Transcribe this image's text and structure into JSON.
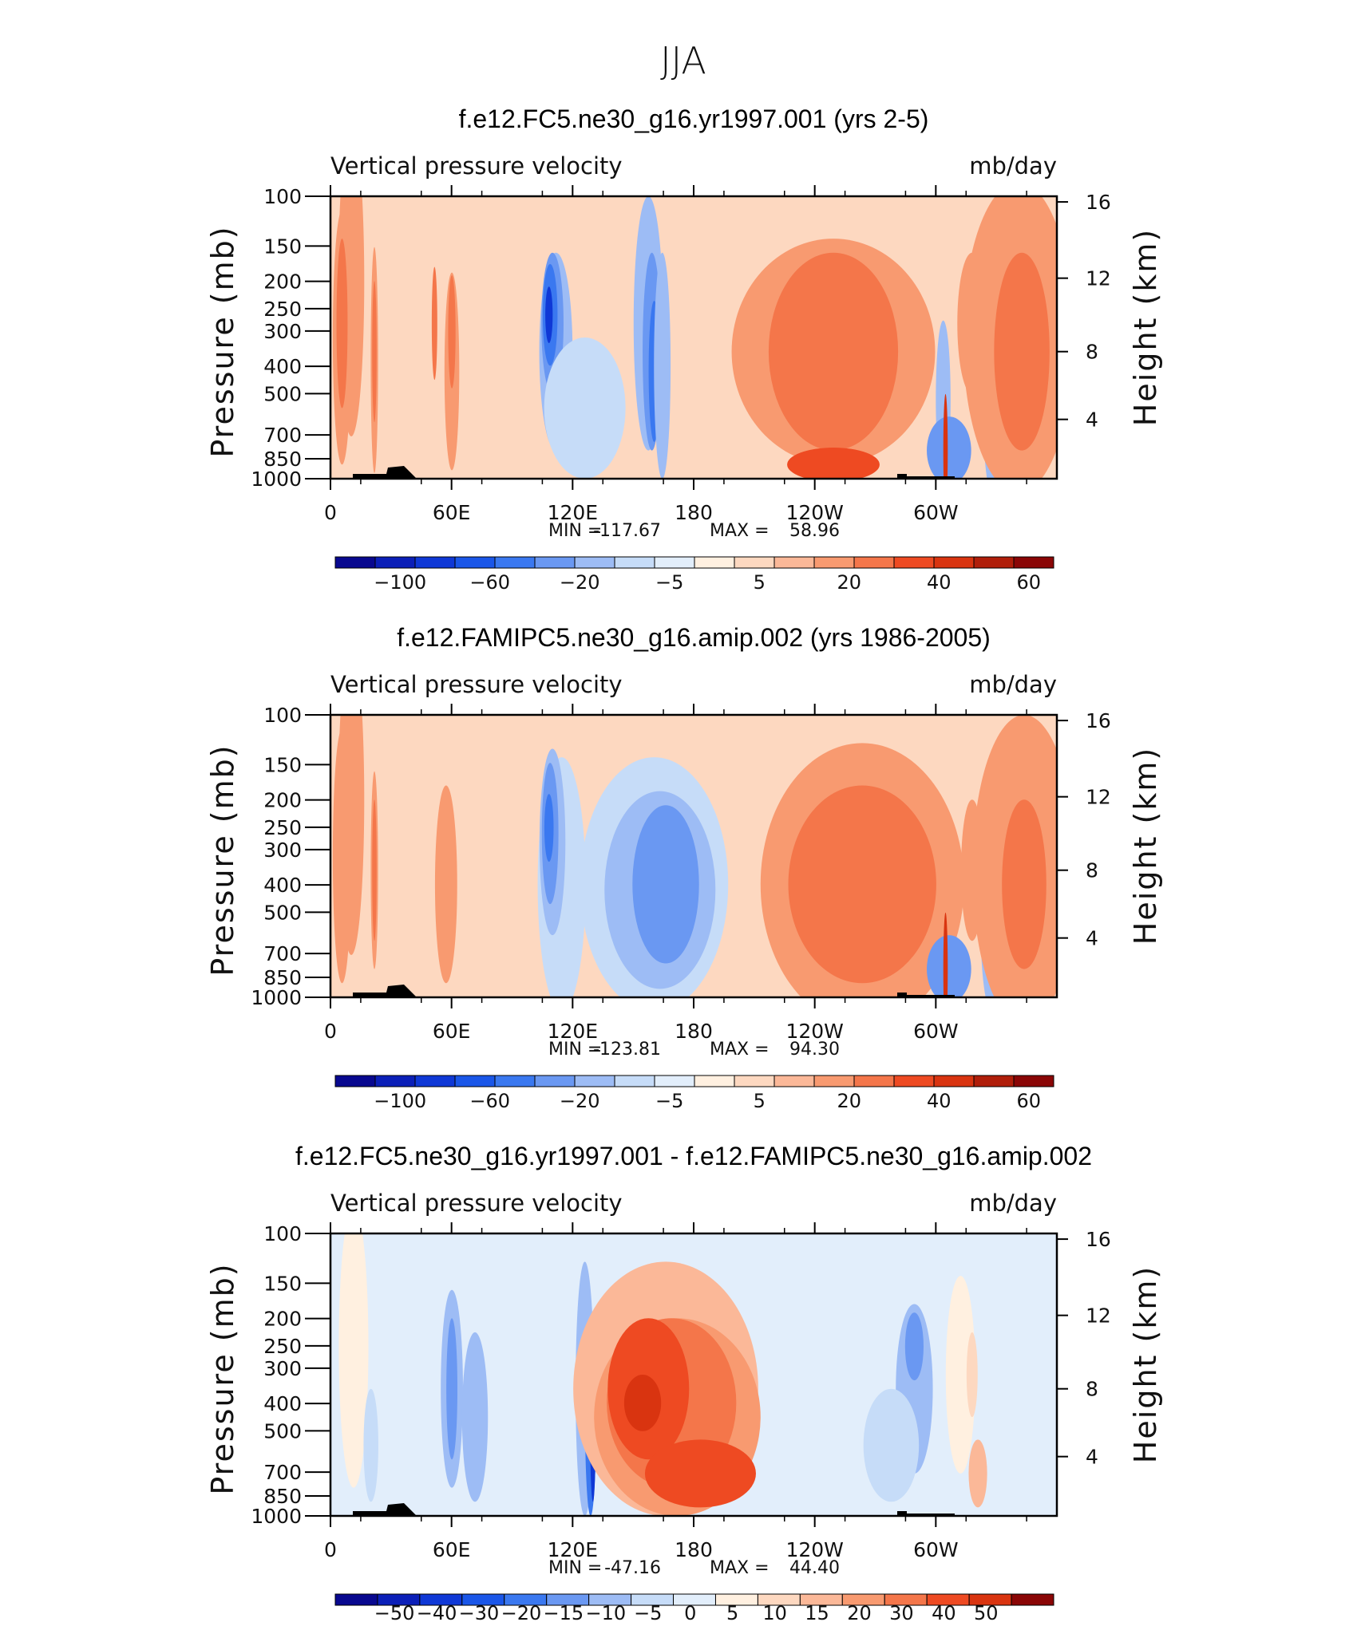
{
  "page_title": "JJA",
  "chart_data": [
    {
      "type": "contour",
      "title": "f.e12.FC5.ne30_g16.yr1997.001 (yrs 2-5)",
      "left_label": "Vertical pressure velocity",
      "right_label": "mb/day",
      "ylabel": "Pressure (mb)",
      "ylabel_right": "Height (km)",
      "x_ticks": [
        "0",
        "60E",
        "120E",
        "180",
        "120W",
        "60W"
      ],
      "y_ticks": [
        "100",
        "150",
        "200",
        "250",
        "300",
        "400",
        "500",
        "700",
        "850",
        "1000"
      ],
      "y_right_ticks": [
        "16",
        "12",
        "8",
        "4"
      ],
      "stats": {
        "min_label": "MIN =",
        "min": "-117.67",
        "max_label": "MAX =",
        "max": "58.96"
      },
      "colorbar_labels": [
        "-100",
        "-60",
        "-20",
        "-5",
        "5",
        "20",
        "40",
        "60"
      ],
      "colorbar_colors": [
        "#08088f",
        "#0b1fb8",
        "#0f38d6",
        "#1a56e8",
        "#3a78f0",
        "#6a98f2",
        "#9dbcf5",
        "#c6dcf8",
        "#e2eefb",
        "#fff0e0",
        "#fdd8c0",
        "#fbb898",
        "#f89a70",
        "#f4764a",
        "#ee4a22",
        "#d93410",
        "#b01e0a",
        "#8a0606"
      ],
      "ylim": [
        1000,
        100
      ],
      "blobs": [
        {
          "x": 0.18,
          "y": 0.3,
          "rx": 0.07,
          "ry": 0.55,
          "c": 12
        },
        {
          "x": 0.1,
          "y": 0.5,
          "rx": 0.05,
          "ry": 0.45,
          "c": 12
        },
        {
          "x": 0.1,
          "y": 0.45,
          "rx": 0.03,
          "ry": 0.3,
          "c": 13
        },
        {
          "x": 0.38,
          "y": 0.58,
          "rx": 0.02,
          "ry": 0.4,
          "c": 12
        },
        {
          "x": 0.38,
          "y": 0.55,
          "rx": 0.012,
          "ry": 0.25,
          "c": 13
        },
        {
          "x": 0.9,
          "y": 0.45,
          "rx": 0.015,
          "ry": 0.2,
          "c": 13
        },
        {
          "x": 1.05,
          "y": 0.62,
          "rx": 0.04,
          "ry": 0.35,
          "c": 12
        },
        {
          "x": 1.05,
          "y": 0.48,
          "rx": 0.02,
          "ry": 0.2,
          "c": 13
        },
        {
          "x": 1.95,
          "y": 0.55,
          "rx": 0.09,
          "ry": 0.35,
          "c": 6
        },
        {
          "x": 1.92,
          "y": 0.45,
          "rx": 0.06,
          "ry": 0.25,
          "c": 5
        },
        {
          "x": 1.9,
          "y": 0.42,
          "rx": 0.04,
          "ry": 0.18,
          "c": 4
        },
        {
          "x": 1.89,
          "y": 0.42,
          "rx": 0.02,
          "ry": 0.1,
          "c": 2
        },
        {
          "x": 2.2,
          "y": 0.75,
          "rx": 0.22,
          "ry": 0.25,
          "c": 7
        },
        {
          "x": 2.75,
          "y": 0.45,
          "rx": 0.08,
          "ry": 0.45,
          "c": 6
        },
        {
          "x": 2.78,
          "y": 0.55,
          "rx": 0.05,
          "ry": 0.35,
          "c": 5
        },
        {
          "x": 2.8,
          "y": 0.62,
          "rx": 0.03,
          "ry": 0.25,
          "c": 4
        },
        {
          "x": 2.87,
          "y": 0.6,
          "rx": 0.045,
          "ry": 0.4,
          "c": 6
        },
        {
          "x": 4.35,
          "y": 0.55,
          "rx": 0.55,
          "ry": 0.4,
          "c": 12
        },
        {
          "x": 4.35,
          "y": 0.55,
          "rx": 0.35,
          "ry": 0.35,
          "c": 13
        },
        {
          "x": 4.35,
          "y": 0.95,
          "rx": 0.25,
          "ry": 0.06,
          "c": 14
        },
        {
          "x": 5.3,
          "y": 0.72,
          "rx": 0.04,
          "ry": 0.28,
          "c": 6
        },
        {
          "x": 5.35,
          "y": 0.9,
          "rx": 0.12,
          "ry": 0.12,
          "c": 5
        },
        {
          "x": 5.32,
          "y": 0.9,
          "rx": 0.012,
          "ry": 0.2,
          "c": 15
        },
        {
          "x": 5.55,
          "y": 0.45,
          "rx": 0.08,
          "ry": 0.25,
          "c": 12
        },
        {
          "x": 5.55,
          "y": 0.5,
          "rx": 0.04,
          "ry": 0.15,
          "c": 13
        },
        {
          "x": 5.72,
          "y": 0.7,
          "rx": 0.05,
          "ry": 0.35,
          "c": 6
        },
        {
          "x": 5.95,
          "y": 0.5,
          "rx": 0.3,
          "ry": 0.55,
          "c": 12
        },
        {
          "x": 5.98,
          "y": 0.55,
          "rx": 0.15,
          "ry": 0.35,
          "c": 13
        }
      ],
      "base": 10
    },
    {
      "type": "contour",
      "title": "f.e12.FAMIPC5.ne30_g16.amip.002 (yrs 1986-2005)",
      "left_label": "Vertical pressure velocity",
      "right_label": "mb/day",
      "ylabel": "Pressure (mb)",
      "ylabel_right": "Height (km)",
      "x_ticks": [
        "0",
        "60E",
        "120E",
        "180",
        "120W",
        "60W"
      ],
      "y_ticks": [
        "100",
        "150",
        "200",
        "250",
        "300",
        "400",
        "500",
        "700",
        "850",
        "1000"
      ],
      "y_right_ticks": [
        "16",
        "12",
        "8",
        "4"
      ],
      "stats": {
        "min_label": "MIN =",
        "min": "-123.81",
        "max_label": "MAX =",
        "max": "94.30"
      },
      "colorbar_labels": [
        "-100",
        "-60",
        "-20",
        "-5",
        "5",
        "20",
        "40",
        "60"
      ],
      "colorbar_colors": [
        "#08088f",
        "#0b1fb8",
        "#0f38d6",
        "#1a56e8",
        "#3a78f0",
        "#6a98f2",
        "#9dbcf5",
        "#c6dcf8",
        "#e2eefb",
        "#fff0e0",
        "#fdd8c0",
        "#fbb898",
        "#f89a70",
        "#f4764a",
        "#ee4a22",
        "#d93410",
        "#b01e0a",
        "#8a0606"
      ],
      "ylim": [
        1000,
        100
      ],
      "blobs": [
        {
          "x": 0.18,
          "y": 0.3,
          "rx": 0.07,
          "ry": 0.55,
          "c": 12
        },
        {
          "x": 0.1,
          "y": 0.5,
          "rx": 0.05,
          "ry": 0.45,
          "c": 12
        },
        {
          "x": 0.38,
          "y": 0.55,
          "rx": 0.02,
          "ry": 0.35,
          "c": 12
        },
        {
          "x": 0.38,
          "y": 0.55,
          "rx": 0.012,
          "ry": 0.25,
          "c": 13
        },
        {
          "x": 1.0,
          "y": 0.6,
          "rx": 0.06,
          "ry": 0.35,
          "c": 12
        },
        {
          "x": 2.0,
          "y": 0.6,
          "rx": 0.13,
          "ry": 0.45,
          "c": 7
        },
        {
          "x": 1.92,
          "y": 0.45,
          "rx": 0.07,
          "ry": 0.33,
          "c": 6
        },
        {
          "x": 1.9,
          "y": 0.42,
          "rx": 0.045,
          "ry": 0.25,
          "c": 5
        },
        {
          "x": 1.89,
          "y": 0.4,
          "rx": 0.025,
          "ry": 0.12,
          "c": 4
        },
        {
          "x": 2.8,
          "y": 0.6,
          "rx": 0.4,
          "ry": 0.45,
          "c": 7
        },
        {
          "x": 2.85,
          "y": 0.62,
          "rx": 0.3,
          "ry": 0.35,
          "c": 6
        },
        {
          "x": 2.9,
          "y": 0.6,
          "rx": 0.18,
          "ry": 0.28,
          "c": 5
        },
        {
          "x": 4.6,
          "y": 0.6,
          "rx": 0.55,
          "ry": 0.5,
          "c": 12
        },
        {
          "x": 4.6,
          "y": 0.6,
          "rx": 0.4,
          "ry": 0.35,
          "c": 13
        },
        {
          "x": 5.35,
          "y": 0.9,
          "rx": 0.12,
          "ry": 0.12,
          "c": 5
        },
        {
          "x": 5.32,
          "y": 0.9,
          "rx": 0.012,
          "ry": 0.2,
          "c": 15
        },
        {
          "x": 5.55,
          "y": 0.55,
          "rx": 0.06,
          "ry": 0.25,
          "c": 12
        },
        {
          "x": 5.72,
          "y": 0.75,
          "rx": 0.06,
          "ry": 0.3,
          "c": 6
        },
        {
          "x": 6.0,
          "y": 0.55,
          "rx": 0.28,
          "ry": 0.55,
          "c": 12
        },
        {
          "x": 6.0,
          "y": 0.6,
          "rx": 0.12,
          "ry": 0.3,
          "c": 13
        }
      ],
      "base": 10
    },
    {
      "type": "contour",
      "title": "f.e12.FC5.ne30_g16.yr1997.001 - f.e12.FAMIPC5.ne30_g16.amip.002",
      "left_label": "Vertical pressure velocity",
      "right_label": "mb/day",
      "ylabel": "Pressure (mb)",
      "ylabel_right": "Height (km)",
      "x_ticks": [
        "0",
        "60E",
        "120E",
        "180",
        "120W",
        "60W"
      ],
      "y_ticks": [
        "100",
        "150",
        "200",
        "250",
        "300",
        "400",
        "500",
        "700",
        "850",
        "1000"
      ],
      "y_right_ticks": [
        "16",
        "12",
        "8",
        "4"
      ],
      "stats": {
        "min_label": "MIN =",
        "min": "-47.16",
        "max_label": "MAX =",
        "max": "44.40"
      },
      "colorbar_labels": [
        "-50",
        "-40",
        "-30",
        "-20",
        "-15",
        "-10",
        "-5",
        "0",
        "5",
        "10",
        "15",
        "20",
        "30",
        "40",
        "50"
      ],
      "colorbar_colors": [
        "#08088f",
        "#0b1fb8",
        "#0f38d6",
        "#1a56e8",
        "#3a78f0",
        "#6a98f2",
        "#9dbcf5",
        "#c6dcf8",
        "#e2eefb",
        "#fff0e0",
        "#fdd8c0",
        "#fbb898",
        "#f89a70",
        "#f4764a",
        "#ee4a22",
        "#d93410",
        "#8a0606"
      ],
      "ylim": [
        1000,
        100
      ],
      "blobs": [
        {
          "x": 0.2,
          "y": 0.4,
          "rx": 0.08,
          "ry": 0.5,
          "c": 9
        },
        {
          "x": 1.05,
          "y": 0.55,
          "rx": 0.06,
          "ry": 0.35,
          "c": 6
        },
        {
          "x": 1.05,
          "y": 0.55,
          "rx": 0.03,
          "ry": 0.25,
          "c": 5
        },
        {
          "x": 1.25,
          "y": 0.65,
          "rx": 0.07,
          "ry": 0.3,
          "c": 6
        },
        {
          "x": 2.2,
          "y": 0.55,
          "rx": 0.05,
          "ry": 0.45,
          "c": 6
        },
        {
          "x": 2.25,
          "y": 0.65,
          "rx": 0.03,
          "ry": 0.35,
          "c": 4
        },
        {
          "x": 2.27,
          "y": 0.7,
          "rx": 0.015,
          "ry": 0.25,
          "c": 2
        },
        {
          "x": 2.9,
          "y": 0.55,
          "rx": 0.5,
          "ry": 0.45,
          "c": 11
        },
        {
          "x": 3.0,
          "y": 0.65,
          "rx": 0.45,
          "ry": 0.35,
          "c": 12
        },
        {
          "x": 2.95,
          "y": 0.6,
          "rx": 0.35,
          "ry": 0.3,
          "c": 13
        },
        {
          "x": 2.75,
          "y": 0.55,
          "rx": 0.22,
          "ry": 0.25,
          "c": 14
        },
        {
          "x": 2.7,
          "y": 0.6,
          "rx": 0.1,
          "ry": 0.1,
          "c": 15
        },
        {
          "x": 3.2,
          "y": 0.85,
          "rx": 0.3,
          "ry": 0.12,
          "c": 14
        },
        {
          "x": 5.05,
          "y": 0.55,
          "rx": 0.1,
          "ry": 0.3,
          "c": 6
        },
        {
          "x": 5.05,
          "y": 0.4,
          "rx": 0.05,
          "ry": 0.12,
          "c": 5
        },
        {
          "x": 4.85,
          "y": 0.75,
          "rx": 0.15,
          "ry": 0.2,
          "c": 7
        },
        {
          "x": 5.45,
          "y": 0.5,
          "rx": 0.08,
          "ry": 0.35,
          "c": 9
        },
        {
          "x": 5.6,
          "y": 0.85,
          "rx": 0.05,
          "ry": 0.12,
          "c": 11
        },
        {
          "x": 5.55,
          "y": 0.5,
          "rx": 0.03,
          "ry": 0.15,
          "c": 10
        },
        {
          "x": 0.35,
          "y": 0.75,
          "rx": 0.04,
          "ry": 0.2,
          "c": 7
        },
        {
          "x": 1.55,
          "y": 0.6,
          "rx": 0.05,
          "ry": 0.3,
          "c": 8
        }
      ],
      "base": 8
    }
  ]
}
